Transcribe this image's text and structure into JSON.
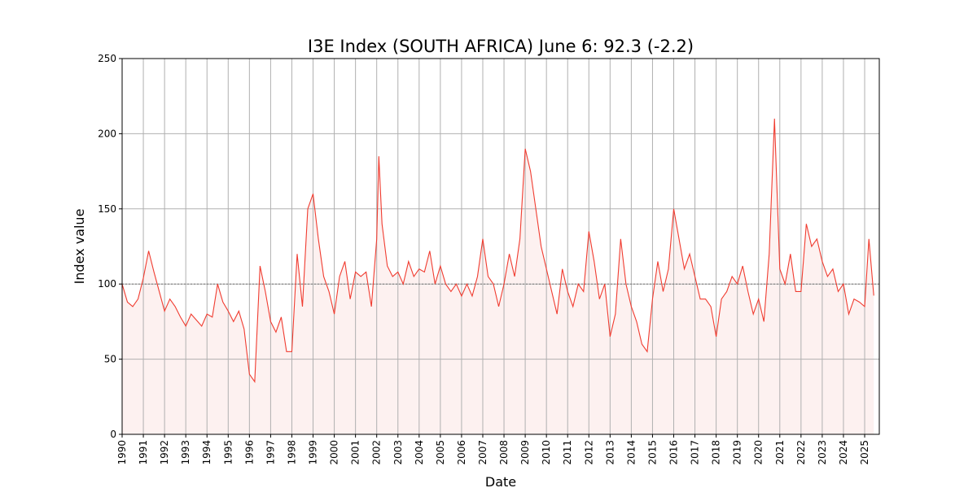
{
  "chart_data": {
    "type": "line",
    "title": "I3E Index (SOUTH AFRICA) June 6: 92.3 (-2.2)",
    "x_label": "Date",
    "y_label": "Index value",
    "x": [
      1990,
      1990.25,
      1990.5,
      1990.75,
      1991,
      1991.25,
      1991.5,
      1991.75,
      1992,
      1992.25,
      1992.5,
      1992.75,
      1993,
      1993.25,
      1993.5,
      1993.75,
      1994,
      1994.25,
      1994.5,
      1994.75,
      1995,
      1995.25,
      1995.5,
      1995.75,
      1996,
      1996.25,
      1996.5,
      1996.75,
      1997,
      1997.25,
      1997.5,
      1997.75,
      1998,
      1998.25,
      1998.5,
      1998.75,
      1999,
      1999.25,
      1999.5,
      1999.75,
      2000,
      2000.25,
      2000.5,
      2000.75,
      2001,
      2001.25,
      2001.5,
      2001.75,
      2002,
      2002.1,
      2002.25,
      2002.5,
      2002.75,
      2003,
      2003.25,
      2003.5,
      2003.75,
      2004,
      2004.25,
      2004.5,
      2004.75,
      2005,
      2005.25,
      2005.5,
      2005.75,
      2006,
      2006.25,
      2006.5,
      2006.75,
      2007,
      2007.25,
      2007.5,
      2007.75,
      2008,
      2008.25,
      2008.5,
      2008.75,
      2009,
      2009.25,
      2009.5,
      2009.75,
      2010,
      2010.25,
      2010.5,
      2010.75,
      2011,
      2011.25,
      2011.5,
      2011.75,
      2012,
      2012.25,
      2012.5,
      2012.75,
      2013,
      2013.25,
      2013.5,
      2013.75,
      2014,
      2014.25,
      2014.5,
      2014.75,
      2015,
      2015.25,
      2015.5,
      2015.75,
      2016,
      2016.25,
      2016.5,
      2016.75,
      2017,
      2017.25,
      2017.5,
      2017.75,
      2018,
      2018.25,
      2018.5,
      2018.75,
      2019,
      2019.25,
      2019.5,
      2019.75,
      2020,
      2020.25,
      2020.5,
      2020.75,
      2021,
      2021.25,
      2021.5,
      2021.75,
      2022,
      2022.25,
      2022.5,
      2022.75,
      2023,
      2023.25,
      2023.5,
      2023.75,
      2024,
      2024.25,
      2024.5,
      2024.75,
      2025,
      2025.2,
      2025.43
    ],
    "values": [
      100,
      88,
      85,
      90,
      104,
      122,
      108,
      95,
      82,
      90,
      85,
      78,
      72,
      80,
      76,
      72,
      80,
      78,
      100,
      88,
      82,
      75,
      82,
      70,
      40,
      35,
      112,
      95,
      75,
      68,
      78,
      55,
      55,
      120,
      85,
      150,
      160,
      130,
      105,
      95,
      80,
      105,
      115,
      90,
      108,
      105,
      108,
      85,
      130,
      185,
      140,
      112,
      105,
      108,
      100,
      115,
      105,
      110,
      108,
      122,
      100,
      112,
      100,
      95,
      100,
      92,
      100,
      92,
      105,
      130,
      105,
      100,
      85,
      100,
      120,
      105,
      130,
      190,
      175,
      150,
      125,
      110,
      95,
      80,
      110,
      95,
      85,
      100,
      95,
      135,
      115,
      90,
      100,
      65,
      80,
      130,
      100,
      85,
      75,
      60,
      55,
      90,
      115,
      95,
      110,
      150,
      130,
      110,
      120,
      105,
      90,
      90,
      85,
      65,
      90,
      95,
      105,
      100,
      112,
      95,
      80,
      90,
      75,
      120,
      210,
      110,
      100,
      120,
      95,
      95,
      140,
      125,
      130,
      115,
      105,
      110,
      95,
      100,
      80,
      90,
      88,
      85,
      130,
      92.3
    ],
    "color": "#f03c30",
    "fill_color": "#fdf1f0",
    "reference_line": 100,
    "xlim": [
      1990,
      2025.69
    ],
    "xticks": [
      1990,
      1991,
      1992,
      1993,
      1994,
      1995,
      1996,
      1997,
      1998,
      1999,
      2000,
      2001,
      2002,
      2003,
      2004,
      2005,
      2006,
      2007,
      2008,
      2009,
      2010,
      2011,
      2012,
      2013,
      2014,
      2015,
      2016,
      2017,
      2018,
      2019,
      2020,
      2021,
      2022,
      2023,
      2024,
      2025
    ],
    "ylim": [
      0,
      250
    ],
    "yticks": [
      0,
      50,
      100,
      150,
      200,
      250
    ],
    "grid": true
  }
}
